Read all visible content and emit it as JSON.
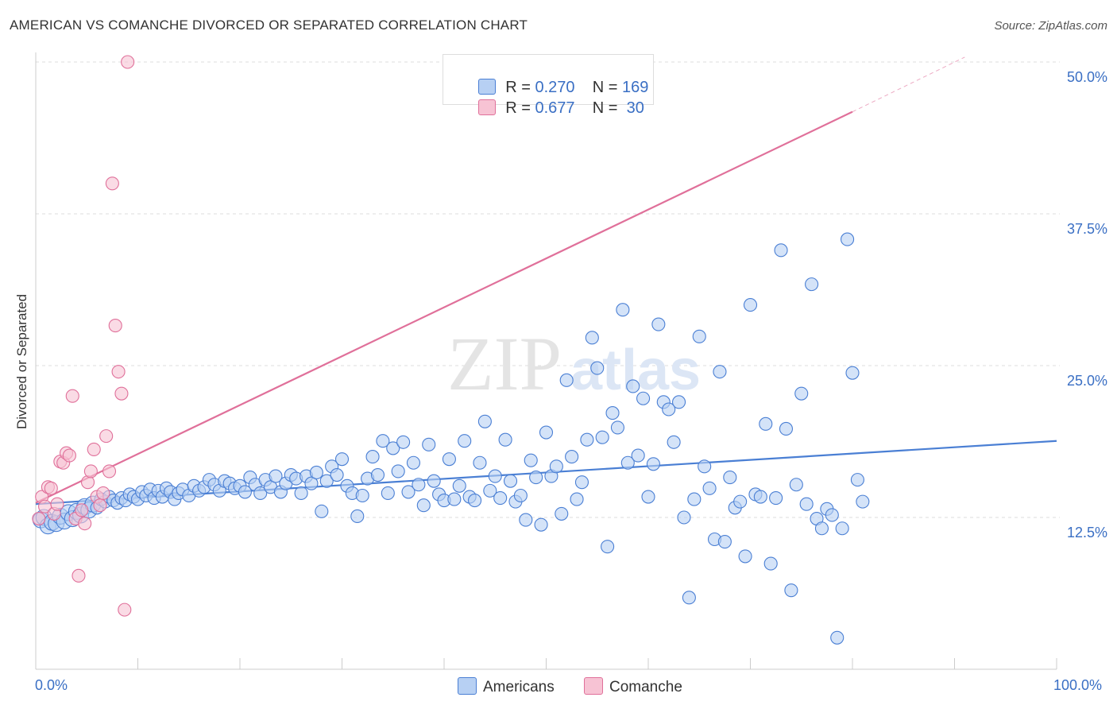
{
  "title": "AMERICAN VS COMANCHE DIVORCED OR SEPARATED CORRELATION CHART",
  "source": "Source: ZipAtlas.com",
  "watermark": {
    "zip": "ZIP",
    "atlas": "atlas"
  },
  "colors": {
    "blue": "#4a7fd4",
    "blue_fill": "#b7d0f3",
    "pink": "#e0709a",
    "pink_fill": "#f7c3d4",
    "grid": "#dddddd",
    "tick_text": "#3a6fc4"
  },
  "legend": {
    "rows": [
      {
        "r_label": "R = ",
        "r_value": "0.270",
        "n_label": "N = ",
        "n_value": "169"
      },
      {
        "r_label": "R = ",
        "r_value": "0.677",
        "n_label": "N = ",
        "n_value": " 30"
      }
    ]
  },
  "bottom_legend": [
    "Americans",
    "Comanche"
  ],
  "chart_data": {
    "type": "scatter",
    "title": "AMERICAN VS COMANCHE DIVORCED OR SEPARATED CORRELATION CHART",
    "xlabel": "",
    "ylabel": "Divorced or Separated",
    "xlim": [
      0,
      100
    ],
    "ylim": [
      0,
      50
    ],
    "x_tick_labels": [
      "0.0%",
      "100.0%"
    ],
    "y_ticks": [
      12.5,
      25.0,
      37.5,
      50.0
    ],
    "y_tick_labels": [
      "12.5%",
      "25.0%",
      "37.5%",
      "50.0%"
    ],
    "grid": true,
    "legend_position": "top-center",
    "series": [
      {
        "name": "Americans",
        "color": "#4a7fd4",
        "r": 0.27,
        "n": 169,
        "trend": {
          "x": [
            0,
            100
          ],
          "y": [
            13.6,
            18.8
          ]
        },
        "points": [
          [
            0.5,
            12.3
          ],
          [
            0.8,
            12.5
          ],
          [
            1.2,
            11.8
          ],
          [
            1.6,
            12.1
          ],
          [
            2.0,
            12.0
          ],
          [
            2.4,
            12.6
          ],
          [
            2.8,
            12.2
          ],
          [
            3.2,
            12.9
          ],
          [
            3.6,
            12.4
          ],
          [
            4.0,
            13.0
          ],
          [
            4.4,
            12.7
          ],
          [
            4.8,
            13.4
          ],
          [
            5.2,
            13.1
          ],
          [
            5.6,
            13.6
          ],
          [
            6.0,
            13.3
          ],
          [
            6.4,
            14.0
          ],
          [
            6.8,
            13.8
          ],
          [
            7.2,
            14.2
          ],
          [
            7.6,
            13.9
          ],
          [
            8.0,
            13.7
          ],
          [
            8.4,
            14.1
          ],
          [
            8.8,
            13.9
          ],
          [
            9.2,
            14.4
          ],
          [
            9.6,
            14.2
          ],
          [
            10.0,
            14.0
          ],
          [
            10.4,
            14.6
          ],
          [
            10.8,
            14.3
          ],
          [
            11.2,
            14.8
          ],
          [
            11.6,
            14.1
          ],
          [
            12.0,
            14.7
          ],
          [
            12.4,
            14.2
          ],
          [
            12.8,
            14.9
          ],
          [
            13.2,
            14.6
          ],
          [
            13.6,
            14.0
          ],
          [
            14.0,
            14.5
          ],
          [
            14.4,
            14.8
          ],
          [
            15.0,
            14.3
          ],
          [
            15.5,
            15.1
          ],
          [
            16.0,
            14.7
          ],
          [
            16.5,
            15.0
          ],
          [
            17.0,
            15.6
          ],
          [
            17.5,
            15.2
          ],
          [
            18.0,
            14.7
          ],
          [
            18.5,
            15.5
          ],
          [
            19.0,
            15.3
          ],
          [
            19.5,
            14.9
          ],
          [
            20.0,
            15.1
          ],
          [
            20.5,
            14.6
          ],
          [
            21.0,
            15.8
          ],
          [
            21.5,
            15.2
          ],
          [
            22.0,
            14.5
          ],
          [
            22.5,
            15.6
          ],
          [
            23.0,
            15.0
          ],
          [
            23.5,
            15.9
          ],
          [
            24.0,
            14.6
          ],
          [
            24.5,
            15.3
          ],
          [
            25.0,
            16.0
          ],
          [
            25.5,
            15.7
          ],
          [
            26.0,
            14.5
          ],
          [
            26.5,
            15.9
          ],
          [
            27.0,
            15.3
          ],
          [
            27.5,
            16.2
          ],
          [
            28.0,
            13.0
          ],
          [
            28.5,
            15.5
          ],
          [
            29.0,
            16.7
          ],
          [
            29.5,
            16.0
          ],
          [
            30.0,
            17.3
          ],
          [
            30.5,
            15.1
          ],
          [
            31.0,
            14.5
          ],
          [
            31.5,
            12.6
          ],
          [
            32.0,
            14.3
          ],
          [
            32.5,
            15.7
          ],
          [
            33.0,
            17.5
          ],
          [
            33.5,
            16.0
          ],
          [
            34.0,
            18.8
          ],
          [
            34.5,
            14.5
          ],
          [
            35.0,
            18.2
          ],
          [
            35.5,
            16.3
          ],
          [
            36.0,
            18.7
          ],
          [
            36.5,
            14.6
          ],
          [
            37.0,
            17.0
          ],
          [
            37.5,
            15.2
          ],
          [
            38.0,
            13.5
          ],
          [
            38.5,
            18.5
          ],
          [
            39.0,
            15.5
          ],
          [
            39.5,
            14.4
          ],
          [
            40.0,
            13.9
          ],
          [
            40.5,
            17.3
          ],
          [
            41.0,
            14.0
          ],
          [
            41.5,
            15.1
          ],
          [
            42.0,
            18.8
          ],
          [
            42.5,
            14.2
          ],
          [
            43.0,
            13.9
          ],
          [
            43.5,
            17.0
          ],
          [
            44.0,
            20.4
          ],
          [
            44.5,
            14.7
          ],
          [
            45.0,
            15.9
          ],
          [
            45.5,
            14.1
          ],
          [
            46.0,
            18.9
          ],
          [
            46.5,
            15.5
          ],
          [
            47.0,
            13.8
          ],
          [
            47.5,
            14.3
          ],
          [
            48.0,
            12.3
          ],
          [
            48.5,
            17.2
          ],
          [
            49.0,
            15.8
          ],
          [
            49.5,
            11.9
          ],
          [
            50.0,
            19.5
          ],
          [
            50.5,
            15.9
          ],
          [
            51.0,
            16.7
          ],
          [
            51.5,
            12.8
          ],
          [
            52.0,
            23.8
          ],
          [
            52.5,
            17.5
          ],
          [
            53.0,
            14.0
          ],
          [
            53.5,
            15.4
          ],
          [
            54.0,
            18.9
          ],
          [
            54.5,
            27.3
          ],
          [
            55.0,
            24.8
          ],
          [
            55.5,
            19.1
          ],
          [
            56.0,
            10.1
          ],
          [
            56.5,
            21.1
          ],
          [
            57.0,
            19.9
          ],
          [
            57.5,
            29.6
          ],
          [
            58.0,
            17.0
          ],
          [
            58.5,
            23.3
          ],
          [
            59.0,
            17.6
          ],
          [
            59.5,
            22.3
          ],
          [
            60.0,
            14.2
          ],
          [
            60.5,
            16.9
          ],
          [
            61.0,
            28.4
          ],
          [
            61.5,
            22.0
          ],
          [
            62.0,
            21.4
          ],
          [
            62.5,
            18.7
          ],
          [
            63.0,
            22.0
          ],
          [
            63.5,
            12.5
          ],
          [
            64.0,
            5.9
          ],
          [
            64.5,
            14.0
          ],
          [
            65.0,
            27.4
          ],
          [
            65.5,
            16.7
          ],
          [
            66.0,
            14.9
          ],
          [
            66.5,
            10.7
          ],
          [
            67.0,
            24.5
          ],
          [
            67.5,
            10.5
          ],
          [
            68.0,
            15.8
          ],
          [
            68.5,
            13.3
          ],
          [
            69.0,
            13.8
          ],
          [
            69.5,
            9.3
          ],
          [
            70.0,
            30.0
          ],
          [
            70.5,
            14.4
          ],
          [
            71.0,
            14.2
          ],
          [
            71.5,
            20.2
          ],
          [
            72.0,
            8.7
          ],
          [
            72.5,
            14.1
          ],
          [
            73.0,
            34.5
          ],
          [
            73.5,
            19.8
          ],
          [
            74.0,
            6.5
          ],
          [
            74.5,
            15.2
          ],
          [
            75.0,
            22.7
          ],
          [
            75.5,
            13.6
          ],
          [
            76.0,
            31.7
          ],
          [
            76.5,
            12.4
          ],
          [
            77.0,
            11.6
          ],
          [
            77.5,
            13.2
          ],
          [
            78.0,
            12.7
          ],
          [
            78.5,
            2.6
          ],
          [
            79.0,
            11.6
          ],
          [
            79.5,
            35.4
          ],
          [
            80.0,
            24.4
          ],
          [
            80.5,
            15.6
          ],
          [
            81.0,
            13.8
          ]
        ]
      },
      {
        "name": "Comanche",
        "color": "#e0709a",
        "r": 0.677,
        "n": 30,
        "trend": {
          "x": [
            0,
            80
          ],
          "y": [
            13.7,
            45.9
          ]
        },
        "trend_dashed": {
          "x": [
            80,
            91
          ],
          "y": [
            45.9,
            50.4
          ]
        },
        "points": [
          [
            0.3,
            12.4
          ],
          [
            0.6,
            14.2
          ],
          [
            0.9,
            13.4
          ],
          [
            1.2,
            15.0
          ],
          [
            1.5,
            14.9
          ],
          [
            1.8,
            12.8
          ],
          [
            2.1,
            13.6
          ],
          [
            2.4,
            17.1
          ],
          [
            2.7,
            17.0
          ],
          [
            3.0,
            17.8
          ],
          [
            3.3,
            17.6
          ],
          [
            3.6,
            22.5
          ],
          [
            3.9,
            12.4
          ],
          [
            4.2,
            7.7
          ],
          [
            4.5,
            13.1
          ],
          [
            4.8,
            12.0
          ],
          [
            5.1,
            15.4
          ],
          [
            5.4,
            16.3
          ],
          [
            5.7,
            18.1
          ],
          [
            6.0,
            14.2
          ],
          [
            6.3,
            13.5
          ],
          [
            6.6,
            14.5
          ],
          [
            6.9,
            19.2
          ],
          [
            7.2,
            16.3
          ],
          [
            7.5,
            40.0
          ],
          [
            7.8,
            28.3
          ],
          [
            8.1,
            24.5
          ],
          [
            8.4,
            22.7
          ],
          [
            8.7,
            4.9
          ],
          [
            9.0,
            50.0
          ]
        ]
      }
    ]
  }
}
